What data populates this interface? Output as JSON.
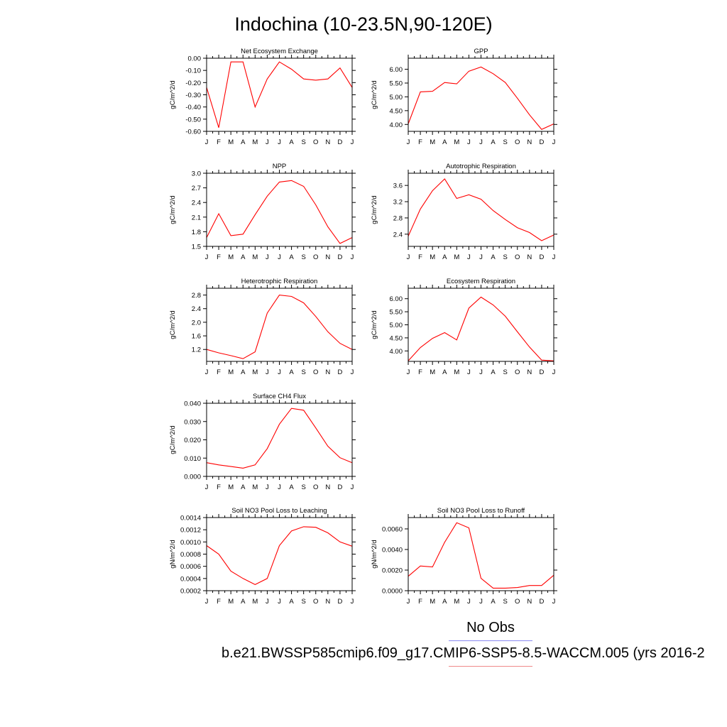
{
  "title": "Indochina (10-23.5N,90-120E)",
  "months": [
    "J",
    "F",
    "M",
    "A",
    "M",
    "J",
    "J",
    "A",
    "S",
    "O",
    "N",
    "D",
    "J"
  ],
  "legend": {
    "obs_label": "No Obs",
    "obs_color": "#8a8af0",
    "run_label": "b.e21.BWSSP585cmip6.f09_g17.CMIP6-SSP5-8.5-WACCM.005 (yrs 2016-2",
    "run_color": "#f08a8a"
  },
  "line_color": "#ff0000",
  "chart_data": [
    {
      "type": "line",
      "title": "Net Ecosystem Exchange",
      "ylabel": "gC/m^2/d",
      "ylim": [
        -0.6,
        0.0
      ],
      "yticks": [
        "0.00",
        "-0.10",
        "-0.20",
        "-0.30",
        "-0.40",
        "-0.50",
        "-0.60"
      ],
      "ytick_values": [
        0.0,
        -0.1,
        -0.2,
        -0.3,
        -0.4,
        -0.5,
        -0.6
      ],
      "x": [
        "J",
        "F",
        "M",
        "A",
        "M",
        "J",
        "J",
        "A",
        "S",
        "O",
        "N",
        "D",
        "J"
      ],
      "values": [
        -0.24,
        -0.57,
        -0.03,
        -0.03,
        -0.4,
        -0.17,
        -0.03,
        -0.09,
        -0.17,
        -0.18,
        -0.17,
        -0.08,
        -0.24
      ]
    },
    {
      "type": "line",
      "title": "GPP",
      "ylabel": "gC/m^2/d",
      "ylim": [
        3.75,
        6.4
      ],
      "yticks": [
        "6.00",
        "5.50",
        "5.00",
        "4.50",
        "4.00"
      ],
      "ytick_values": [
        6.0,
        5.5,
        5.0,
        4.5,
        4.0
      ],
      "x": [
        "J",
        "F",
        "M",
        "A",
        "M",
        "J",
        "J",
        "A",
        "S",
        "O",
        "N",
        "D",
        "J"
      ],
      "values": [
        4.02,
        5.18,
        5.2,
        5.52,
        5.47,
        5.93,
        6.08,
        5.84,
        5.52,
        4.95,
        4.35,
        3.82,
        4.02
      ]
    },
    {
      "type": "line",
      "title": "NPP",
      "ylabel": "gC/m^2/d",
      "ylim": [
        1.5,
        3.0
      ],
      "yticks": [
        "3.0",
        "2.7",
        "2.4",
        "2.1",
        "1.8",
        "1.5"
      ],
      "ytick_values": [
        3.0,
        2.7,
        2.4,
        2.1,
        1.8,
        1.5
      ],
      "x": [
        "J",
        "F",
        "M",
        "A",
        "M",
        "J",
        "J",
        "A",
        "S",
        "O",
        "N",
        "D",
        "J"
      ],
      "values": [
        1.68,
        2.17,
        1.72,
        1.75,
        2.15,
        2.53,
        2.82,
        2.85,
        2.73,
        2.35,
        1.9,
        1.56,
        1.68
      ]
    },
    {
      "type": "line",
      "title": "Autotrophic Respiration",
      "ylabel": "gC/m^2/d",
      "ylim": [
        2.1,
        3.9
      ],
      "yticks": [
        "3.6",
        "3.2",
        "2.8",
        "2.4"
      ],
      "ytick_values": [
        3.6,
        3.2,
        2.8,
        2.4
      ],
      "x": [
        "J",
        "F",
        "M",
        "A",
        "M",
        "J",
        "J",
        "A",
        "S",
        "O",
        "N",
        "D",
        "J"
      ],
      "values": [
        2.35,
        3.02,
        3.47,
        3.76,
        3.28,
        3.37,
        3.26,
        2.98,
        2.76,
        2.56,
        2.44,
        2.24,
        2.38
      ]
    },
    {
      "type": "line",
      "title": "Heterotrophic Respiration",
      "ylabel": "gC/m^2/d",
      "ylim": [
        0.85,
        3.0
      ],
      "yticks": [
        "2.8",
        "2.4",
        "2.0",
        "1.6",
        "1.2"
      ],
      "ytick_values": [
        2.8,
        2.4,
        2.0,
        1.6,
        1.2
      ],
      "x": [
        "J",
        "F",
        "M",
        "A",
        "M",
        "J",
        "J",
        "A",
        "S",
        "O",
        "N",
        "D",
        "J"
      ],
      "values": [
        1.2,
        1.1,
        1.02,
        0.93,
        1.13,
        2.27,
        2.8,
        2.76,
        2.57,
        2.17,
        1.72,
        1.38,
        1.2
      ]
    },
    {
      "type": "line",
      "title": "Ecosystem Respiration",
      "ylabel": "gC/m^2/d",
      "ylim": [
        3.6,
        6.4
      ],
      "yticks": [
        "6.00",
        "5.50",
        "5.00",
        "4.50",
        "4.00"
      ],
      "ytick_values": [
        6.0,
        5.5,
        5.0,
        4.5,
        4.0
      ],
      "x": [
        "J",
        "F",
        "M",
        "A",
        "M",
        "J",
        "J",
        "A",
        "S",
        "O",
        "N",
        "D",
        "J"
      ],
      "values": [
        3.62,
        4.13,
        4.48,
        4.7,
        4.42,
        5.64,
        6.06,
        5.76,
        5.33,
        4.73,
        4.15,
        3.65,
        3.62
      ]
    },
    {
      "type": "line",
      "title": "Surface CH4 Flux",
      "ylabel": "gC/m^2/d",
      "ylim": [
        0.0,
        0.04
      ],
      "yticks": [
        "0.040",
        "0.030",
        "0.020",
        "0.010",
        "0.000"
      ],
      "ytick_values": [
        0.04,
        0.03,
        0.02,
        0.01,
        0.0
      ],
      "x": [
        "J",
        "F",
        "M",
        "A",
        "M",
        "J",
        "J",
        "A",
        "S",
        "O",
        "N",
        "D",
        "J"
      ],
      "values": [
        0.0075,
        0.0063,
        0.0054,
        0.0045,
        0.0063,
        0.0152,
        0.0285,
        0.0372,
        0.0362,
        0.0265,
        0.0165,
        0.0102,
        0.0075
      ]
    },
    {
      "type": "line",
      "title": "Soil NO3 Pool Loss to Leaching",
      "ylabel": "gN/m^2/d",
      "ylim": [
        0.0002,
        0.0014
      ],
      "yticks": [
        "0.0014",
        "0.0012",
        "0.0010",
        "0.0008",
        "0.0006",
        "0.0004",
        "0.0002"
      ],
      "ytick_values": [
        0.0014,
        0.0012,
        0.001,
        0.0008,
        0.0006,
        0.0004,
        0.0002
      ],
      "x": [
        "J",
        "F",
        "M",
        "A",
        "M",
        "J",
        "J",
        "A",
        "S",
        "O",
        "N",
        "D",
        "J"
      ],
      "values": [
        0.00094,
        0.0008,
        0.00052,
        0.0004,
        0.0003,
        0.0004,
        0.00094,
        0.00118,
        0.00125,
        0.00124,
        0.00115,
        0.001,
        0.00093
      ]
    },
    {
      "type": "line",
      "title": "Soil NO3 Pool Loss to Runoff",
      "ylabel": "gN/m^2/d",
      "ylim": [
        0.0,
        0.0071
      ],
      "yticks": [
        "0.0060",
        "0.0040",
        "0.0020",
        "0.0000"
      ],
      "ytick_values": [
        0.006,
        0.004,
        0.002,
        0.0
      ],
      "x": [
        "J",
        "F",
        "M",
        "A",
        "M",
        "J",
        "J",
        "A",
        "S",
        "O",
        "N",
        "D",
        "J"
      ],
      "values": [
        0.0014,
        0.0024,
        0.0023,
        0.0047,
        0.0066,
        0.0061,
        0.0012,
        0.00025,
        0.00025,
        0.0003,
        0.0005,
        0.0005,
        0.0015
      ]
    }
  ]
}
